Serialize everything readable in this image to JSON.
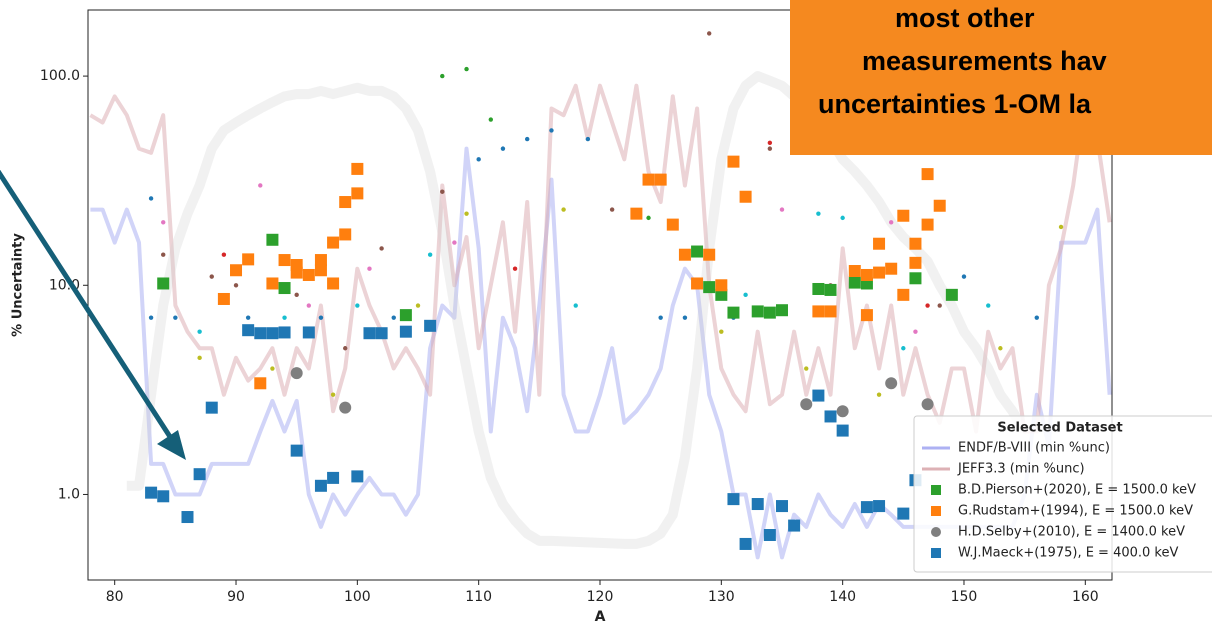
{
  "chart_data": {
    "type": "scatter",
    "xlabel": "A",
    "ylabel": "% Uncertainty",
    "xlim": [
      77.8,
      162.2
    ],
    "ylim": [
      0.39,
      207
    ],
    "ylog": true,
    "xticks": [
      80,
      90,
      100,
      110,
      120,
      130,
      140,
      150,
      160
    ],
    "yticks": [
      {
        "value": 1,
        "label": "1.0"
      },
      {
        "value": 10,
        "label": "10.0"
      },
      {
        "value": 100,
        "label": "100.0"
      }
    ],
    "legend_title": "Selected Dataset",
    "legend": "lower right",
    "annotation": {
      "lines": [
        "most other",
        "measurements hav",
        "uncertainties 1-OM la"
      ],
      "color": "#f5891f",
      "arrow_color": "#155f78"
    },
    "lines": [
      {
        "name": "ENDF/B-VIII (min %unc)",
        "color": "#9a9ff0",
        "opacity": 0.45,
        "width": 4,
        "x": [
          78,
          79,
          80,
          81,
          82,
          83,
          84,
          85,
          86,
          87,
          88,
          89,
          90,
          91,
          92,
          93,
          94,
          95,
          96,
          97,
          98,
          99,
          100,
          101,
          102,
          103,
          104,
          105,
          106,
          107,
          108,
          109,
          110,
          111,
          112,
          113,
          114,
          115,
          116,
          117,
          118,
          119,
          120,
          121,
          122,
          123,
          124,
          125,
          126,
          127,
          128,
          129,
          130,
          131,
          132,
          133,
          134,
          135,
          136,
          137,
          138,
          139,
          140,
          141,
          142,
          143,
          144,
          145,
          146,
          147,
          148,
          149,
          150,
          151,
          152,
          153,
          154,
          155,
          156,
          157,
          158,
          159,
          160,
          161,
          162
        ],
        "values": [
          23,
          23,
          16,
          23,
          16,
          1.4,
          1.4,
          1.0,
          1.0,
          1.0,
          1.4,
          1.4,
          1.4,
          1.4,
          2.0,
          2.8,
          2.0,
          2.8,
          1.0,
          0.7,
          1.0,
          0.8,
          1.0,
          1.2,
          1.0,
          1.0,
          0.8,
          1.0,
          5,
          8,
          7,
          45,
          15,
          2,
          7,
          5,
          2.5,
          8,
          32,
          3,
          2,
          2,
          3,
          5,
          2.2,
          2.5,
          3,
          4,
          8,
          12,
          10,
          3,
          2.0,
          1.0,
          1.0,
          0.5,
          1.0,
          0.5,
          0.8,
          0.7,
          1.0,
          0.8,
          0.7,
          0.9,
          0.7,
          0.9,
          0.8,
          0.7,
          0.7,
          0.7,
          0.7,
          0.7,
          0.7,
          0.7,
          0.7,
          0.7,
          0.7,
          1,
          3,
          1.7,
          16,
          16,
          16,
          23,
          3
        ]
      },
      {
        "name": "JEFF3.3 (min %unc)",
        "color": "#d9a8ad",
        "opacity": 0.5,
        "width": 4,
        "x": [
          78,
          79,
          80,
          81,
          82,
          83,
          84,
          85,
          86,
          87,
          88,
          89,
          90,
          91,
          92,
          93,
          94,
          95,
          96,
          97,
          98,
          99,
          100,
          101,
          102,
          103,
          104,
          105,
          106,
          107,
          108,
          109,
          110,
          111,
          112,
          113,
          114,
          115,
          116,
          117,
          118,
          119,
          120,
          121,
          122,
          123,
          124,
          125,
          126,
          127,
          128,
          129,
          130,
          131,
          132,
          133,
          134,
          135,
          136,
          137,
          138,
          139,
          140,
          141,
          142,
          143,
          144,
          145,
          146,
          147,
          148,
          149,
          150,
          151,
          152,
          153,
          154,
          155,
          156,
          157,
          158,
          159,
          160,
          161,
          162
        ],
        "values": [
          65,
          60,
          80,
          65,
          45,
          43,
          65,
          8,
          6,
          5,
          5,
          3,
          4.5,
          3.5,
          4,
          5,
          3,
          5,
          4,
          8,
          2.5,
          4,
          12,
          8,
          6,
          4,
          5,
          4,
          3,
          30,
          10,
          17,
          5,
          10,
          20,
          6,
          25,
          3,
          70,
          65,
          90,
          50,
          90,
          60,
          40,
          90,
          35,
          25,
          80,
          30,
          70,
          10,
          4,
          3,
          2.5,
          6,
          2.7,
          3,
          6,
          3,
          5,
          3,
          15,
          5,
          8,
          4,
          8,
          3,
          5,
          3,
          2.2,
          4,
          4,
          2,
          6,
          4,
          5,
          2,
          2,
          10,
          15,
          30,
          80,
          50,
          20
        ]
      },
      {
        "color": "#d0d0d0",
        "opacity": 0.3,
        "width": 10,
        "x": [
          81,
          82,
          83,
          84,
          85,
          86,
          87,
          88,
          89,
          90,
          91,
          92,
          93,
          94,
          95,
          96,
          97,
          98,
          99,
          100,
          101,
          102,
          103,
          104,
          105,
          106,
          107,
          108,
          109,
          110,
          111,
          112,
          113,
          114,
          115,
          116,
          122,
          123,
          124,
          125,
          126,
          127,
          128,
          129,
          130,
          131,
          132,
          133,
          134,
          135,
          136,
          137,
          138,
          139,
          140,
          141,
          142,
          143,
          144,
          145,
          146,
          147,
          148,
          149,
          150,
          151,
          152,
          153,
          154,
          155
        ],
        "values": [
          1.1,
          1.1,
          3,
          8,
          15,
          22,
          30,
          45,
          55,
          60,
          65,
          70,
          75,
          80,
          82,
          82,
          85,
          82,
          85,
          88,
          85,
          85,
          80,
          70,
          55,
          35,
          18,
          8,
          4,
          2,
          1.2,
          0.9,
          0.75,
          0.65,
          0.6,
          0.6,
          0.58,
          0.58,
          0.6,
          0.65,
          0.8,
          1.5,
          4,
          15,
          40,
          70,
          90,
          100,
          95,
          90,
          80,
          70,
          60,
          50,
          40,
          35,
          30,
          25,
          20,
          17,
          15,
          13,
          10,
          8,
          6,
          5,
          4,
          3,
          2.5,
          2
        ]
      }
    ],
    "series": [
      {
        "color": "#1f77b4",
        "marker": "dot",
        "x": [
          83,
          83,
          85,
          91,
          97,
          103,
          110,
          112,
          114,
          116,
          119,
          125,
          127,
          131,
          150,
          156
        ],
        "values": [
          26,
          7,
          7,
          7,
          7,
          7,
          40,
          45,
          50,
          55,
          50,
          7,
          7,
          7,
          11,
          7
        ]
      },
      {
        "color": "#8c564b",
        "marker": "dot",
        "x": [
          84,
          88,
          90,
          95,
          99,
          102,
          107,
          121,
          129,
          134,
          139,
          148
        ],
        "values": [
          14,
          11,
          10,
          9,
          5,
          15,
          28,
          23,
          160,
          45,
          10,
          8
        ]
      },
      {
        "color": "#e377c2",
        "marker": "dot",
        "x": [
          84,
          90,
          92,
          96,
          101,
          108,
          135,
          144,
          146
        ],
        "values": [
          20,
          12,
          30,
          8,
          12,
          16,
          23,
          20,
          6
        ]
      },
      {
        "color": "#bcbd22",
        "marker": "dot",
        "x": [
          87,
          93,
          98,
          105,
          109,
          117,
          130,
          137,
          143,
          153,
          158
        ],
        "values": [
          4.5,
          4,
          3,
          8,
          22,
          23,
          6,
          4,
          3,
          5,
          19
        ]
      },
      {
        "color": "#17becf",
        "marker": "dot",
        "x": [
          87,
          94,
          100,
          106,
          118,
          132,
          138,
          140,
          145,
          152
        ],
        "values": [
          6,
          7,
          8,
          14,
          8,
          9,
          22,
          21,
          5,
          8
        ]
      },
      {
        "color": "#2ca02c",
        "marker": "dot",
        "x": [
          107,
          109,
          111,
          124
        ],
        "values": [
          100,
          108,
          62,
          21
        ]
      },
      {
        "color": "#d62728",
        "marker": "dot",
        "x": [
          89,
          97,
          113,
          134,
          147
        ],
        "values": [
          14,
          12,
          12,
          48,
          8
        ]
      },
      {
        "name": "B.D.Pierson+(2020), E = 1500.0 keV",
        "color": "#2ca02c",
        "marker": "square",
        "x": [
          84,
          93,
          94,
          104,
          128,
          129,
          130,
          131,
          133,
          134,
          135,
          138,
          139,
          141,
          142,
          146,
          149
        ],
        "values": [
          10.2,
          16.5,
          9.7,
          7.2,
          14.5,
          9.8,
          9,
          7.4,
          7.5,
          7.4,
          7.6,
          9.6,
          9.5,
          10.3,
          10.2,
          10.8,
          9
        ]
      },
      {
        "name": "G.Rudstam+(1994), E = 1500.0 keV",
        "color": "#ff7f0e",
        "marker": "square",
        "x": [
          89,
          90,
          91,
          92,
          93,
          94,
          95,
          95,
          96,
          97,
          97,
          98,
          98,
          99,
          99,
          100,
          100,
          123,
          124,
          125,
          126,
          127,
          128,
          129,
          130,
          131,
          132,
          138,
          139,
          141,
          142,
          142,
          143,
          143,
          144,
          145,
          145,
          146,
          146,
          147,
          147,
          148
        ],
        "values": [
          8.6,
          11.8,
          13.3,
          3.4,
          10.2,
          13.2,
          12.5,
          11.5,
          11.2,
          13.2,
          11.8,
          10.2,
          16,
          25,
          17.5,
          36,
          27.5,
          22,
          32,
          32,
          19.5,
          14,
          10.2,
          14,
          10,
          39,
          26.5,
          7.5,
          7.5,
          11.7,
          7.2,
          11.2,
          15.8,
          11.5,
          12,
          21.5,
          9,
          15.8,
          12.8,
          34,
          19.5,
          24
        ]
      },
      {
        "name": "H.D.Selby+(2010), E = 1400.0 keV",
        "color": "#7f7f7f",
        "marker": "circle",
        "x": [
          95,
          99,
          137,
          140,
          144,
          147
        ],
        "values": [
          3.8,
          2.6,
          2.7,
          2.5,
          3.4,
          2.7
        ]
      },
      {
        "name": "W.J.Maeck+(1975), E = 400.0 keV",
        "color": "#1f77b4",
        "marker": "square",
        "x": [
          83,
          84,
          86,
          87,
          88,
          91,
          92,
          93,
          94,
          95,
          96,
          97,
          98,
          100,
          101,
          102,
          104,
          106,
          131,
          132,
          133,
          134,
          135,
          136,
          138,
          139,
          140,
          142,
          143,
          145,
          146
        ],
        "values": [
          1.02,
          0.98,
          0.78,
          1.25,
          2.6,
          6.1,
          5.9,
          5.9,
          5.95,
          1.62,
          5.95,
          1.1,
          1.2,
          1.22,
          5.9,
          5.9,
          6.0,
          6.4,
          0.95,
          0.58,
          0.9,
          0.64,
          0.88,
          0.71,
          2.97,
          2.36,
          2.02,
          0.87,
          0.88,
          0.81,
          1.17
        ]
      }
    ]
  }
}
